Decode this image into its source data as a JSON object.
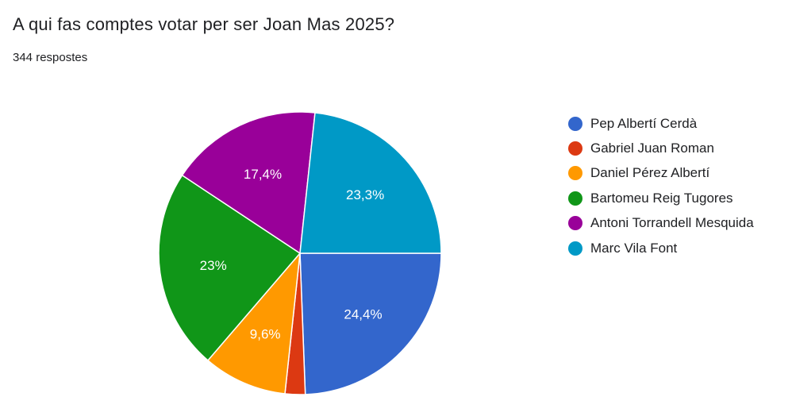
{
  "header": {
    "title": "A qui fas comptes votar per ser Joan Mas 2025?",
    "responses": "344 respostes"
  },
  "chart_data": {
    "type": "pie",
    "title": "A qui fas comptes votar per ser Joan Mas 2025?",
    "total_responses": 344,
    "legend_position": "right",
    "start_angle_clock": "3 o'clock",
    "direction": "clockwise",
    "slices": [
      {
        "name": "Pep Albertí Cerdà",
        "value": 24.4,
        "label": "24,4%",
        "color": "#3366cc"
      },
      {
        "name": "Gabriel Juan Roman",
        "value": 2.3,
        "label": "",
        "color": "#dc3912"
      },
      {
        "name": "Daniel Pérez Albertí",
        "value": 9.6,
        "label": "9,6%",
        "color": "#ff9900"
      },
      {
        "name": "Bartomeu Reig Tugores",
        "value": 23.0,
        "label": "23%",
        "color": "#109618"
      },
      {
        "name": "Antoni Torrandell Mesquida",
        "value": 17.4,
        "label": "17,4%",
        "color": "#990099"
      },
      {
        "name": "Marc Vila Font",
        "value": 23.3,
        "label": "23,3%",
        "color": "#0099c6"
      }
    ]
  }
}
